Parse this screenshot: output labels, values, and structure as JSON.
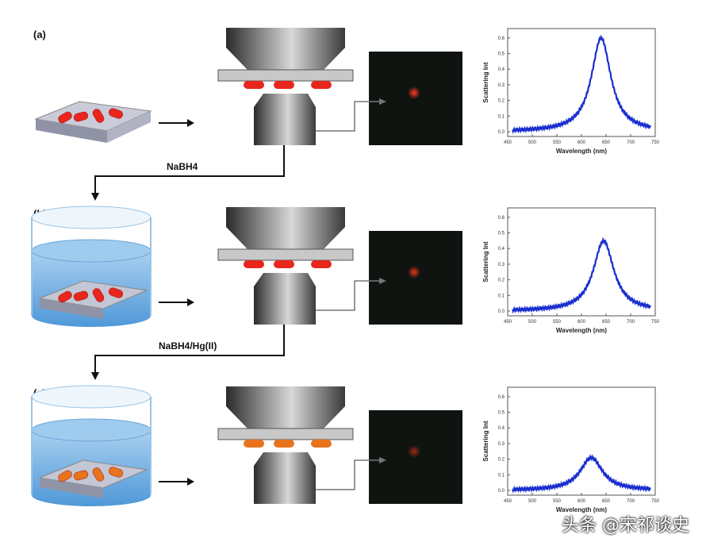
{
  "panels": [
    {
      "label": "(a)",
      "reagent": "NaBH4",
      "reagent_main": "NaBH",
      "reagent_sub": "4",
      "reagent_tail": "",
      "particle_color": "#e8261c",
      "dot_brightness": 1.0
    },
    {
      "label": "(b)",
      "reagent": "NaBH4/Hg(II)",
      "reagent_main": "NaBH",
      "reagent_sub": "4",
      "reagent_tail": "/Hg(II)",
      "particle_color": "#e8261c",
      "dot_brightness": 0.9
    },
    {
      "label": "(c)",
      "particle_color": "#e8731c",
      "dot_brightness": 0.6
    }
  ],
  "chart_data": [
    {
      "type": "line",
      "xlabel": "Wavelength (nm)",
      "ylabel": "Scattering Int",
      "xlim": [
        450,
        750
      ],
      "ylim": [
        0,
        0.65
      ],
      "xticks": [
        450,
        500,
        550,
        600,
        650,
        700,
        750
      ],
      "yticks": [
        0.0,
        0.1,
        0.2,
        0.3,
        0.4,
        0.5,
        0.6
      ],
      "peak_wavelength": 640,
      "peak_intensity": 0.6,
      "fwhm": 48,
      "x_range": [
        460,
        740
      ]
    },
    {
      "type": "line",
      "xlabel": "Wavelength (nm)",
      "ylabel": "Scattering Int",
      "xlim": [
        450,
        750
      ],
      "ylim": [
        0,
        0.65
      ],
      "xticks": [
        450,
        500,
        550,
        600,
        650,
        700,
        750
      ],
      "yticks": [
        0.0,
        0.1,
        0.2,
        0.3,
        0.4,
        0.5,
        0.6
      ],
      "peak_wavelength": 645,
      "peak_intensity": 0.45,
      "fwhm": 50,
      "x_range": [
        460,
        740
      ]
    },
    {
      "type": "line",
      "xlabel": "Wavelength (nm)",
      "ylabel": "Scattering Int",
      "xlim": [
        450,
        750
      ],
      "ylim": [
        0,
        0.65
      ],
      "xticks": [
        450,
        500,
        550,
        600,
        650,
        700,
        750
      ],
      "yticks": [
        0.0,
        0.1,
        0.2,
        0.3,
        0.4,
        0.5,
        0.6
      ],
      "peak_wavelength": 620,
      "peak_intensity": 0.21,
      "fwhm": 55,
      "x_range": [
        460,
        740
      ]
    }
  ],
  "watermark": "头条 @宋祁谈史",
  "colors": {
    "curve": "#1a2fd0",
    "objective": "#555555",
    "beaker_water": "#7fb7e6"
  }
}
